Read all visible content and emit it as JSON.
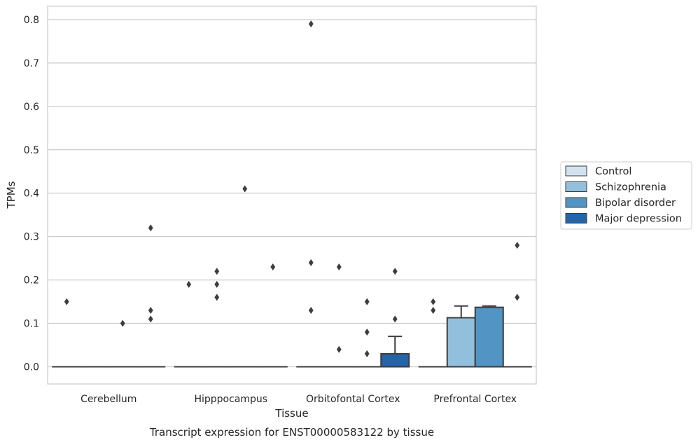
{
  "chart_data": {
    "type": "box",
    "title": "",
    "caption": "Transcript expression for ENST00000583122 by tissue",
    "xlabel": "Tissue",
    "ylabel": "TPMs",
    "ylim": [
      -0.04,
      0.83
    ],
    "yticks": [
      0.0,
      0.1,
      0.2,
      0.3,
      0.4,
      0.5,
      0.6,
      0.7,
      0.8
    ],
    "ytick_labels": [
      "0.0",
      "0.1",
      "0.2",
      "0.3",
      "0.4",
      "0.5",
      "0.6",
      "0.7",
      "0.8"
    ],
    "grid": true,
    "legend_position": "right",
    "categories": [
      "Cerebellum",
      "Hipppocampus",
      "Orbitofontal Cortex",
      "Prefrontal Cortex"
    ],
    "series": [
      {
        "name": "Control",
        "color": "#d1e1f0"
      },
      {
        "name": "Schizophrenia",
        "color": "#92c0dc"
      },
      {
        "name": "Bipolar disorder",
        "color": "#5295c4"
      },
      {
        "name": "Major depression",
        "color": "#2564a6"
      }
    ],
    "boxes": [
      {
        "category": 0,
        "series": 0,
        "q1": 0,
        "median": 0,
        "q3": 0,
        "whisker_low": 0,
        "whisker_high": 0,
        "outliers": [
          0.15
        ]
      },
      {
        "category": 0,
        "series": 1,
        "q1": 0,
        "median": 0,
        "q3": 0,
        "whisker_low": 0,
        "whisker_high": 0,
        "outliers": []
      },
      {
        "category": 0,
        "series": 2,
        "q1": 0,
        "median": 0,
        "q3": 0,
        "whisker_low": 0,
        "whisker_high": 0,
        "outliers": [
          0.1
        ]
      },
      {
        "category": 0,
        "series": 3,
        "q1": 0,
        "median": 0,
        "q3": 0,
        "whisker_low": 0,
        "whisker_high": 0,
        "outliers": [
          0.32,
          0.13,
          0.11
        ]
      },
      {
        "category": 1,
        "series": 0,
        "q1": 0,
        "median": 0,
        "q3": 0,
        "whisker_low": 0,
        "whisker_high": 0,
        "outliers": [
          0.19
        ]
      },
      {
        "category": 1,
        "series": 1,
        "q1": 0,
        "median": 0,
        "q3": 0,
        "whisker_low": 0,
        "whisker_high": 0,
        "outliers": [
          0.22,
          0.19,
          0.16
        ]
      },
      {
        "category": 1,
        "series": 2,
        "q1": 0,
        "median": 0,
        "q3": 0,
        "whisker_low": 0,
        "whisker_high": 0,
        "outliers": [
          0.41
        ]
      },
      {
        "category": 1,
        "series": 3,
        "q1": 0,
        "median": 0,
        "q3": 0,
        "whisker_low": 0,
        "whisker_high": 0,
        "outliers": [
          0.23
        ]
      },
      {
        "category": 2,
        "series": 0,
        "q1": 0,
        "median": 0,
        "q3": 0,
        "whisker_low": 0,
        "whisker_high": 0,
        "outliers": [
          0.79,
          0.24,
          0.13
        ]
      },
      {
        "category": 2,
        "series": 1,
        "q1": 0,
        "median": 0,
        "q3": 0,
        "whisker_low": 0,
        "whisker_high": 0,
        "outliers": [
          0.23,
          0.04
        ]
      },
      {
        "category": 2,
        "series": 2,
        "q1": 0,
        "median": 0,
        "q3": 0,
        "whisker_low": 0,
        "whisker_high": 0,
        "outliers": [
          0.15,
          0.08,
          0.03
        ]
      },
      {
        "category": 2,
        "series": 3,
        "q1": 0,
        "median": 0,
        "q3": 0.03,
        "whisker_low": 0,
        "whisker_high": 0.07,
        "outliers": [
          0.22,
          0.11
        ]
      },
      {
        "category": 3,
        "series": 0,
        "q1": 0,
        "median": 0,
        "q3": 0,
        "whisker_low": 0,
        "whisker_high": 0,
        "outliers": [
          0.15,
          0.13
        ]
      },
      {
        "category": 3,
        "series": 1,
        "q1": 0,
        "median": 0,
        "q3": 0.113,
        "whisker_low": 0,
        "whisker_high": 0.14,
        "outliers": []
      },
      {
        "category": 3,
        "series": 2,
        "q1": 0,
        "median": 0,
        "q3": 0.137,
        "whisker_low": 0,
        "whisker_high": 0.14,
        "outliers": []
      },
      {
        "category": 3,
        "series": 3,
        "q1": 0,
        "median": 0,
        "q3": 0,
        "whisker_low": 0,
        "whisker_high": 0,
        "outliers": [
          0.28,
          0.16
        ]
      }
    ]
  }
}
